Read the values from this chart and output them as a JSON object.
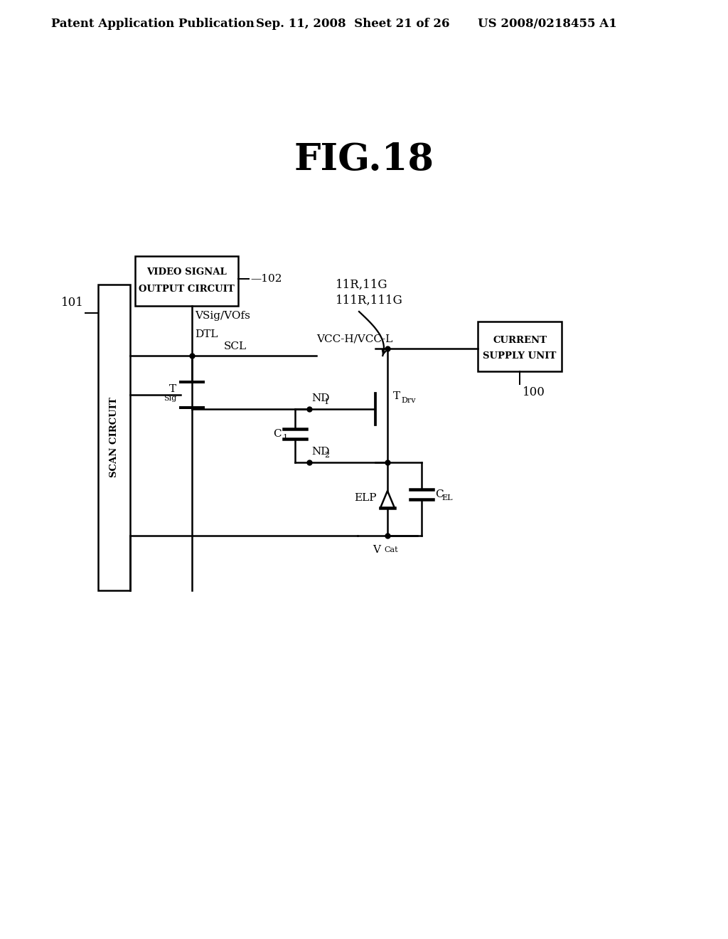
{
  "bg_color": "#ffffff",
  "title": "FIG.18",
  "title_fontsize": 38,
  "header_left": "Patent Application Publication",
  "header_center": "Sep. 11, 2008  Sheet 21 of 26",
  "header_right": "US 2008/0218455 A1",
  "header_fontsize": 12,
  "lw": 1.8
}
